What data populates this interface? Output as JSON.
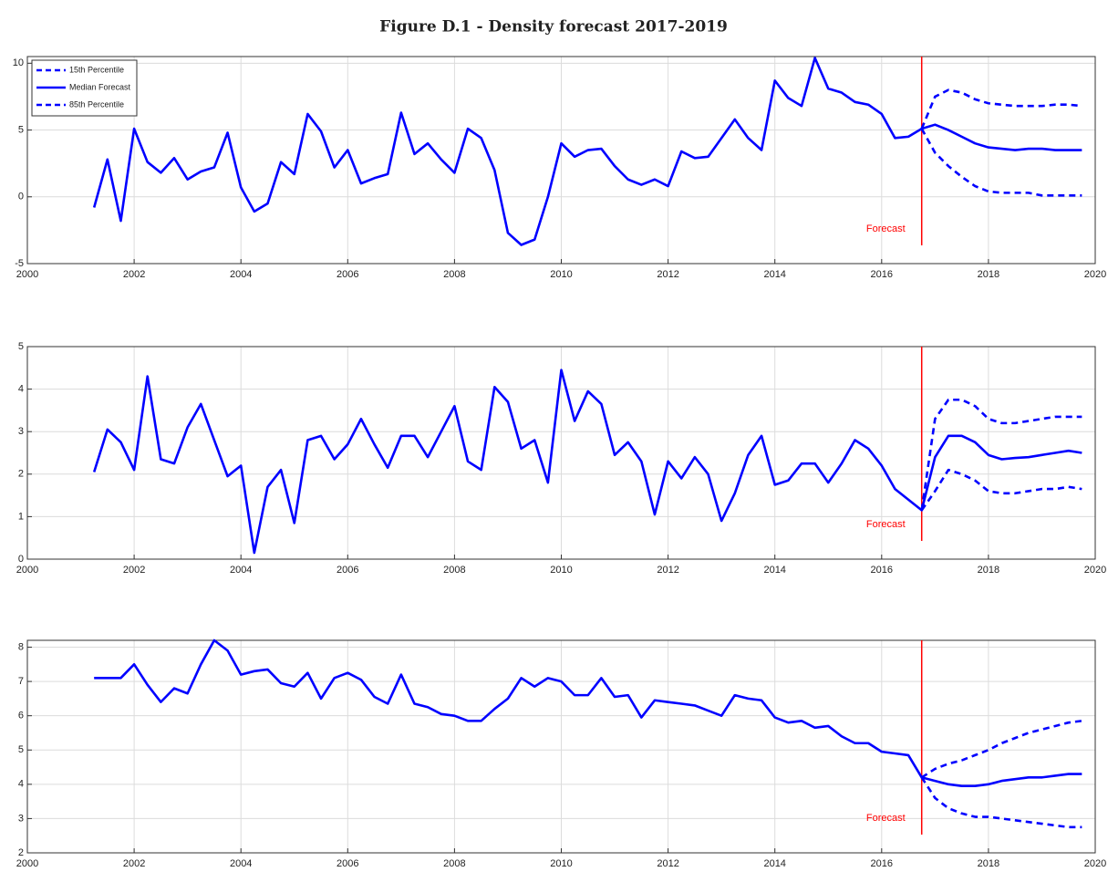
{
  "title": "Figure D.1 - Density forecast 2017-2019",
  "chart_data": [
    {
      "type": "line",
      "x": [
        2001.25,
        2001.5,
        2001.75,
        2002,
        2002.25,
        2002.5,
        2002.75,
        2003,
        2003.25,
        2003.5,
        2003.75,
        2004,
        2004.25,
        2004.5,
        2004.75,
        2005,
        2005.25,
        2005.5,
        2005.75,
        2006,
        2006.25,
        2006.5,
        2006.75,
        2007,
        2007.25,
        2007.5,
        2007.75,
        2008,
        2008.25,
        2008.5,
        2008.75,
        2009,
        2009.25,
        2009.5,
        2009.75,
        2010,
        2010.25,
        2010.5,
        2010.75,
        2011,
        2011.25,
        2011.5,
        2011.75,
        2012,
        2012.25,
        2012.5,
        2012.75,
        2013,
        2013.25,
        2013.5,
        2013.75,
        2014,
        2014.25,
        2014.5,
        2014.75,
        2015,
        2015.25,
        2015.5,
        2015.75,
        2016,
        2016.25,
        2016.5,
        2016.75,
        2017,
        2017.25,
        2017.5,
        2017.75,
        2018,
        2018.25,
        2018.5,
        2018.75,
        2019,
        2019.25,
        2019.5,
        2019.75
      ],
      "series": [
        {
          "name": "15th Percentile",
          "color": "#0000ff",
          "style": "dashed",
          "x": [
            2016.75,
            2017,
            2017.25,
            2017.5,
            2017.75,
            2018,
            2018.25,
            2018.5,
            2018.75,
            2019,
            2019.25,
            2019.5,
            2019.75
          ],
          "values": [
            5.1,
            3.3,
            2.3,
            1.5,
            0.8,
            0.4,
            0.3,
            0.3,
            0.3,
            0.1,
            0.1,
            0.1,
            0.1
          ]
        },
        {
          "name": "Median Forecast",
          "color": "#0000ff",
          "style": "solid",
          "values": [
            -0.8,
            2.8,
            -1.8,
            5.1,
            2.6,
            1.8,
            2.9,
            1.3,
            1.9,
            2.2,
            4.8,
            0.7,
            -1.1,
            -0.5,
            2.6,
            1.7,
            6.2,
            4.9,
            2.2,
            3.5,
            1.0,
            1.4,
            1.7,
            6.3,
            3.2,
            4.0,
            2.8,
            1.8,
            5.1,
            4.4,
            2.0,
            -2.7,
            -3.6,
            -3.2,
            0.0,
            4.0,
            3.0,
            3.5,
            3.6,
            2.3,
            1.3,
            0.9,
            1.3,
            0.8,
            3.4,
            2.9,
            3.0,
            4.4,
            5.8,
            4.4,
            3.5,
            8.7,
            7.4,
            6.8,
            10.4,
            8.1,
            7.8,
            7.1,
            6.9,
            6.2,
            4.4,
            4.5,
            5.1,
            5.4,
            5.0,
            4.5,
            4.0,
            3.7,
            3.6,
            3.5,
            3.6,
            3.6,
            3.5,
            3.5,
            3.5
          ]
        },
        {
          "name": "85th Percentile",
          "color": "#0000ff",
          "style": "dashed",
          "x": [
            2016.75,
            2017,
            2017.25,
            2017.5,
            2017.75,
            2018,
            2018.25,
            2018.5,
            2018.75,
            2019,
            2019.25,
            2019.5,
            2019.75
          ],
          "values": [
            5.1,
            7.5,
            8.0,
            7.8,
            7.3,
            7.0,
            6.9,
            6.8,
            6.8,
            6.8,
            6.9,
            6.9,
            6.8
          ]
        }
      ],
      "xlim": [
        2000,
        2020
      ],
      "xticks": [
        2000,
        2002,
        2004,
        2006,
        2008,
        2010,
        2012,
        2014,
        2016,
        2018,
        2020
      ],
      "ylim": [
        -5,
        10.5
      ],
      "yticks": [
        -5,
        0,
        5,
        10
      ],
      "grid": true,
      "legend": "upper left",
      "annotations": [
        {
          "text": "Forecast",
          "x": 2016.75,
          "color": "#ff0000"
        }
      ]
    },
    {
      "type": "line",
      "x": [
        2001.25,
        2001.5,
        2001.75,
        2002,
        2002.25,
        2002.5,
        2002.75,
        2003,
        2003.25,
        2003.5,
        2003.75,
        2004,
        2004.25,
        2004.5,
        2004.75,
        2005,
        2005.25,
        2005.5,
        2005.75,
        2006,
        2006.25,
        2006.5,
        2006.75,
        2007,
        2007.25,
        2007.5,
        2007.75,
        2008,
        2008.25,
        2008.5,
        2008.75,
        2009,
        2009.25,
        2009.5,
        2009.75,
        2010,
        2010.25,
        2010.5,
        2010.75,
        2011,
        2011.25,
        2011.5,
        2011.75,
        2012,
        2012.25,
        2012.5,
        2012.75,
        2013,
        2013.25,
        2013.5,
        2013.75,
        2014,
        2014.25,
        2014.5,
        2014.75,
        2015,
        2015.25,
        2015.5,
        2015.75,
        2016,
        2016.25,
        2016.5,
        2016.75,
        2017,
        2017.25,
        2017.5,
        2017.75,
        2018,
        2018.25,
        2018.5,
        2018.75,
        2019,
        2019.25,
        2019.5,
        2019.75
      ],
      "series": [
        {
          "color": "#0000ff",
          "style": "dashed",
          "x": [
            2016.75,
            2017,
            2017.25,
            2017.5,
            2017.75,
            2018,
            2018.25,
            2018.5,
            2018.75,
            2019,
            2019.25,
            2019.5,
            2019.75
          ],
          "values": [
            1.15,
            1.6,
            2.1,
            2.0,
            1.85,
            1.6,
            1.55,
            1.55,
            1.6,
            1.65,
            1.65,
            1.7,
            1.65
          ]
        },
        {
          "color": "#0000ff",
          "style": "solid",
          "values": [
            2.05,
            3.05,
            2.75,
            2.1,
            4.3,
            2.35,
            2.25,
            3.1,
            3.65,
            2.8,
            1.95,
            2.2,
            0.15,
            1.7,
            2.1,
            0.85,
            2.8,
            2.9,
            2.35,
            2.7,
            3.3,
            2.7,
            2.15,
            2.9,
            2.9,
            2.4,
            3.0,
            3.6,
            2.3,
            2.1,
            4.05,
            3.7,
            2.6,
            2.8,
            1.8,
            4.45,
            3.25,
            3.95,
            3.65,
            2.45,
            2.75,
            2.3,
            1.05,
            2.3,
            1.9,
            2.4,
            2.0,
            0.9,
            1.55,
            2.45,
            2.9,
            1.75,
            1.85,
            2.25,
            2.25,
            1.8,
            2.25,
            2.8,
            2.6,
            2.2,
            1.65,
            1.4,
            1.15,
            2.4,
            2.9,
            2.9,
            2.75,
            2.45,
            2.35,
            2.38,
            2.4,
            2.45,
            2.5,
            2.55,
            2.5
          ]
        },
        {
          "color": "#0000ff",
          "style": "dashed",
          "x": [
            2016.75,
            2017,
            2017.25,
            2017.5,
            2017.75,
            2018,
            2018.25,
            2018.5,
            2018.75,
            2019,
            2019.25,
            2019.5,
            2019.75
          ],
          "values": [
            1.15,
            3.3,
            3.75,
            3.75,
            3.6,
            3.3,
            3.2,
            3.2,
            3.25,
            3.3,
            3.35,
            3.35,
            3.35
          ]
        }
      ],
      "xlim": [
        2000,
        2020
      ],
      "xticks": [
        2000,
        2002,
        2004,
        2006,
        2008,
        2010,
        2012,
        2014,
        2016,
        2018,
        2020
      ],
      "ylim": [
        0,
        5
      ],
      "yticks": [
        0,
        1,
        2,
        3,
        4,
        5
      ],
      "grid": true,
      "annotations": [
        {
          "text": "Forecast",
          "x": 2016.75,
          "color": "#ff0000"
        }
      ]
    },
    {
      "type": "line",
      "x": [
        2001.25,
        2001.5,
        2001.75,
        2002,
        2002.25,
        2002.5,
        2002.75,
        2003,
        2003.25,
        2003.5,
        2003.75,
        2004,
        2004.25,
        2004.5,
        2004.75,
        2005,
        2005.25,
        2005.5,
        2005.75,
        2006,
        2006.25,
        2006.5,
        2006.75,
        2007,
        2007.25,
        2007.5,
        2007.75,
        2008,
        2008.25,
        2008.5,
        2008.75,
        2009,
        2009.25,
        2009.5,
        2009.75,
        2010,
        2010.25,
        2010.5,
        2010.75,
        2011,
        2011.25,
        2011.5,
        2011.75,
        2012,
        2012.25,
        2012.5,
        2012.75,
        2013,
        2013.25,
        2013.5,
        2013.75,
        2014,
        2014.25,
        2014.5,
        2014.75,
        2015,
        2015.25,
        2015.5,
        2015.75,
        2016,
        2016.25,
        2016.5,
        2016.75,
        2017,
        2017.25,
        2017.5,
        2017.75,
        2018,
        2018.25,
        2018.5,
        2018.75,
        2019,
        2019.25,
        2019.5,
        2019.75
      ],
      "series": [
        {
          "color": "#0000ff",
          "style": "dashed",
          "x": [
            2016.75,
            2017,
            2017.25,
            2017.5,
            2017.75,
            2018,
            2018.25,
            2018.5,
            2018.75,
            2019,
            2019.25,
            2019.5,
            2019.75
          ],
          "values": [
            4.2,
            3.6,
            3.3,
            3.15,
            3.05,
            3.05,
            3.0,
            2.95,
            2.9,
            2.85,
            2.8,
            2.75,
            2.75
          ]
        },
        {
          "color": "#0000ff",
          "style": "solid",
          "values": [
            7.1,
            7.1,
            7.1,
            7.5,
            6.9,
            6.4,
            6.8,
            6.65,
            7.5,
            8.2,
            7.9,
            7.2,
            7.3,
            7.35,
            6.95,
            6.85,
            7.25,
            6.5,
            7.1,
            7.25,
            7.05,
            6.55,
            6.35,
            7.2,
            6.35,
            6.25,
            6.05,
            6.0,
            5.85,
            5.85,
            6.2,
            6.5,
            7.1,
            6.85,
            7.1,
            7.0,
            6.6,
            6.6,
            7.1,
            6.55,
            6.6,
            5.95,
            6.45,
            6.4,
            6.35,
            6.3,
            6.15,
            6.0,
            6.6,
            6.5,
            6.45,
            5.95,
            5.8,
            5.85,
            5.65,
            5.7,
            5.4,
            5.2,
            5.2,
            4.95,
            4.9,
            4.85,
            4.2,
            4.1,
            4.0,
            3.95,
            3.95,
            4.0,
            4.1,
            4.15,
            4.2,
            4.2,
            4.25,
            4.3,
            4.3
          ]
        },
        {
          "color": "#0000ff",
          "style": "dashed",
          "x": [
            2016.75,
            2017,
            2017.25,
            2017.5,
            2017.75,
            2018,
            2018.25,
            2018.5,
            2018.75,
            2019,
            2019.25,
            2019.5,
            2019.75
          ],
          "values": [
            4.2,
            4.45,
            4.6,
            4.7,
            4.85,
            5.0,
            5.2,
            5.35,
            5.5,
            5.6,
            5.7,
            5.8,
            5.85
          ]
        }
      ],
      "xlim": [
        2000,
        2020
      ],
      "xticks": [
        2000,
        2002,
        2004,
        2006,
        2008,
        2010,
        2012,
        2014,
        2016,
        2018,
        2020
      ],
      "ylim": [
        2,
        8.2
      ],
      "yticks": [
        2,
        3,
        4,
        5,
        6,
        7,
        8
      ],
      "grid": true,
      "annotations": [
        {
          "text": "Forecast",
          "x": 2016.75,
          "color": "#ff0000"
        }
      ]
    }
  ]
}
